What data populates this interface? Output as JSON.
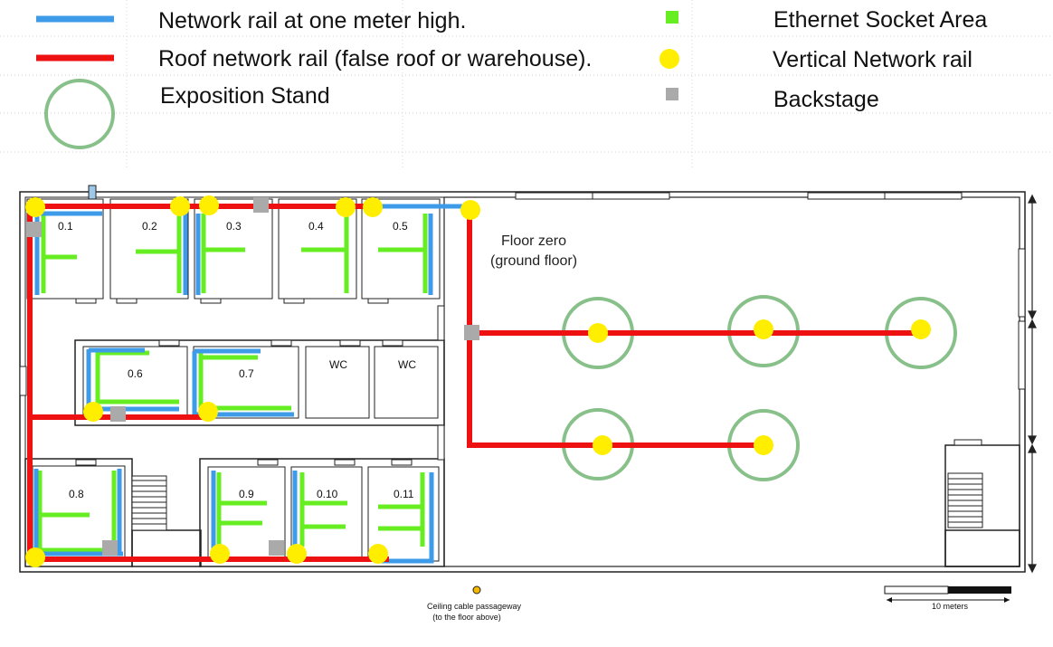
{
  "legend": {
    "blue_rail": "Network rail at one meter high.",
    "red_rail": "Roof network rail (false roof or warehouse).",
    "stand": "Exposition Stand",
    "socket": "Ethernet Socket Area",
    "vertical": "Vertical Network rail",
    "backstage": "Backstage"
  },
  "plan": {
    "floor_title": "Floor zero",
    "floor_subtitle": "(ground floor)",
    "rooms": [
      "0.1",
      "0.2",
      "0.3",
      "0.4",
      "0.5",
      "0.6",
      "0.7",
      "WC",
      "WC",
      "0.8",
      "0.9",
      "0.10",
      "0.11"
    ],
    "passage_label_1": "Ceiling cable passageway",
    "passage_label_2": "(to the floor above)",
    "scale_label": "10 meters"
  },
  "colors": {
    "blue": "#3d9be9",
    "red": "#ee1111",
    "green": "#66ee22",
    "yellow": "#ffee00",
    "grey": "#aaaaaa",
    "stand": "#88c08a"
  }
}
